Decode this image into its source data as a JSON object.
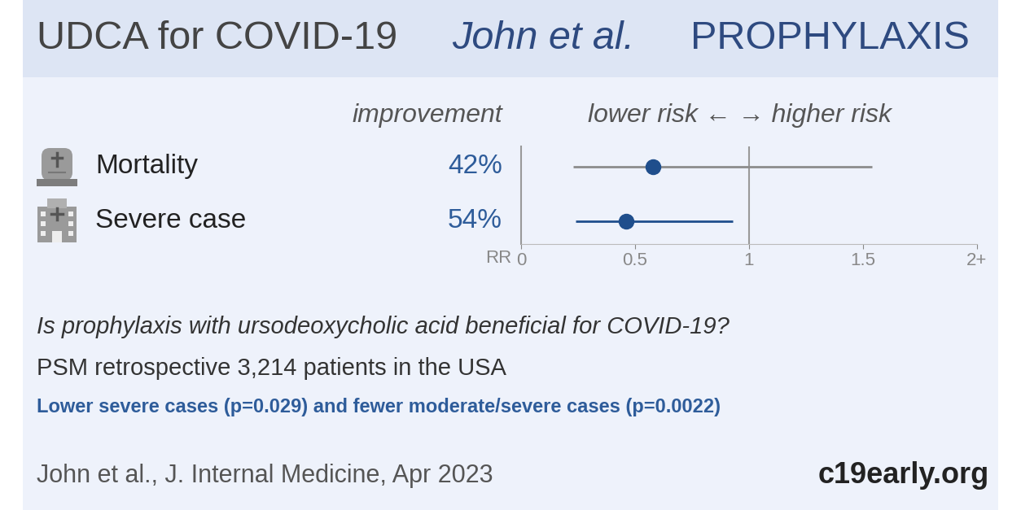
{
  "header": {
    "title": "UDCA for COVID-19",
    "authors": "John et al.",
    "tag": "PROPHYLAXIS"
  },
  "chart_data": {
    "type": "forest",
    "column_header": "improvement",
    "direction_header": "lower risk ← → higher risk",
    "categories": [
      "Mortality",
      "Severe case"
    ],
    "values": [
      0.58,
      0.46
    ],
    "ci_low": [
      0.23,
      0.24
    ],
    "ci_high": [
      1.54,
      0.93
    ],
    "improvement": {
      "values": [
        42,
        54
      ],
      "value_labels": [
        "42%",
        "54%"
      ]
    },
    "color": "#1f4e8c",
    "xlabel": "RR",
    "xlim": [
      0,
      2
    ],
    "xticks": [
      0,
      0.5,
      1,
      1.5,
      {
        "value": 2,
        "label": "2+"
      }
    ],
    "tick_labels": "x"
  },
  "text": {
    "question": "Is prophylaxis with ursodeoxycholic acid beneficial for COVID-19?",
    "design": "PSM retrospective 3,214 patients in the USA",
    "result": "Lower severe cases (p=0.029) and fewer moderate/severe cases (p=0.0022)",
    "citation": "John et al., J. Internal Medicine, Apr 2023",
    "source": "c19early.org"
  }
}
